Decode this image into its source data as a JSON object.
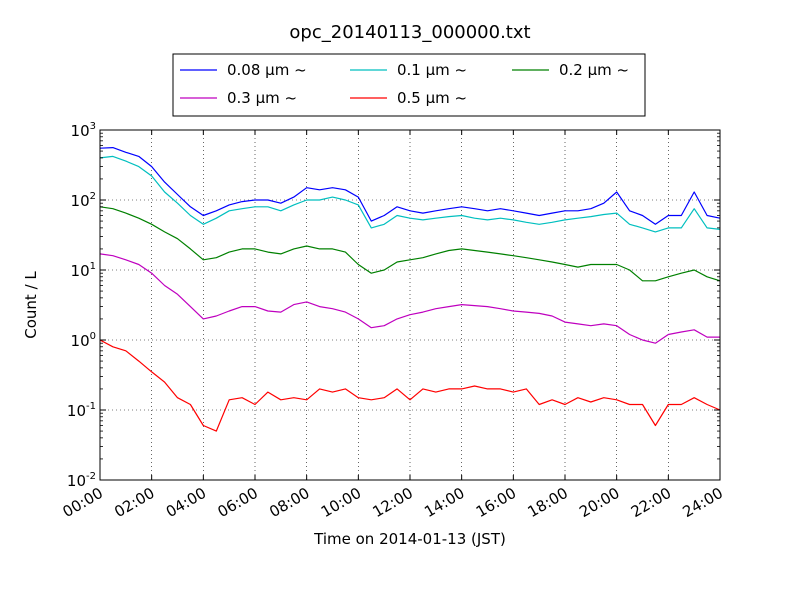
{
  "chart_data": {
    "type": "line",
    "title": "opc_20140113_000000.txt",
    "xlabel": "Time on 2014-01-13 (JST)",
    "ylabel": "Count / L",
    "yscale": "log",
    "xlim": [
      "00:00",
      "24:00"
    ],
    "ylim": [
      0.01,
      1000
    ],
    "x_ticks": [
      "00:00",
      "02:00",
      "04:00",
      "06:00",
      "08:00",
      "10:00",
      "12:00",
      "14:00",
      "16:00",
      "18:00",
      "20:00",
      "22:00",
      "24:00"
    ],
    "y_ticks": [
      {
        "base": "10",
        "exp": "-2",
        "value": 0.01
      },
      {
        "base": "10",
        "exp": "-1",
        "value": 0.1
      },
      {
        "base": "10",
        "exp": "0",
        "value": 1
      },
      {
        "base": "10",
        "exp": "1",
        "value": 10
      },
      {
        "base": "10",
        "exp": "2",
        "value": 100
      },
      {
        "base": "10",
        "exp": "3",
        "value": 1000
      }
    ],
    "grid": true,
    "legend": {
      "placement": "top-center",
      "columns": 3
    },
    "x": [
      "00:00",
      "00:30",
      "01:00",
      "01:30",
      "02:00",
      "02:30",
      "03:00",
      "03:30",
      "04:00",
      "04:30",
      "05:00",
      "05:30",
      "06:00",
      "06:30",
      "07:00",
      "07:30",
      "08:00",
      "08:30",
      "09:00",
      "09:30",
      "10:00",
      "10:30",
      "11:00",
      "11:30",
      "12:00",
      "12:30",
      "13:00",
      "13:30",
      "14:00",
      "14:30",
      "15:00",
      "15:30",
      "16:00",
      "16:30",
      "17:00",
      "17:30",
      "18:00",
      "18:30",
      "19:00",
      "19:30",
      "20:00",
      "20:30",
      "21:00",
      "21:30",
      "22:00",
      "22:30",
      "23:00",
      "23:30",
      "24:00"
    ],
    "series": [
      {
        "name": "0.08 µm ~",
        "color": "#0000ff",
        "values": [
          550,
          560,
          480,
          420,
          300,
          180,
          120,
          80,
          60,
          70,
          85,
          95,
          100,
          100,
          90,
          110,
          150,
          140,
          150,
          140,
          110,
          50,
          60,
          80,
          70,
          65,
          70,
          75,
          80,
          75,
          70,
          75,
          70,
          65,
          60,
          65,
          70,
          70,
          75,
          90,
          130,
          70,
          60,
          45,
          60,
          60,
          130,
          60,
          55
        ]
      },
      {
        "name": "0.1 µm ~",
        "color": "#00bfbf",
        "values": [
          400,
          420,
          360,
          300,
          220,
          130,
          90,
          60,
          45,
          55,
          70,
          75,
          80,
          80,
          70,
          85,
          100,
          100,
          110,
          100,
          85,
          40,
          45,
          60,
          55,
          52,
          55,
          58,
          60,
          55,
          52,
          55,
          52,
          48,
          45,
          48,
          52,
          55,
          58,
          62,
          65,
          45,
          40,
          35,
          40,
          40,
          75,
          40,
          38
        ]
      },
      {
        "name": "0.2 µm ~",
        "color": "#008000",
        "values": [
          80,
          75,
          65,
          55,
          45,
          35,
          28,
          20,
          14,
          15,
          18,
          20,
          20,
          18,
          17,
          20,
          22,
          20,
          20,
          18,
          12,
          9,
          10,
          13,
          14,
          15,
          17,
          19,
          20,
          19,
          18,
          17,
          16,
          15,
          14,
          13,
          12,
          11,
          12,
          12,
          12,
          10,
          7,
          7,
          8,
          9,
          10,
          8,
          7
        ]
      },
      {
        "name": "0.3 µm ~",
        "color": "#bf00bf",
        "values": [
          17,
          16,
          14,
          12,
          9,
          6,
          4.5,
          3,
          2,
          2.2,
          2.6,
          3,
          3,
          2.6,
          2.5,
          3.2,
          3.5,
          3,
          2.8,
          2.5,
          2,
          1.5,
          1.6,
          2,
          2.3,
          2.5,
          2.8,
          3,
          3.2,
          3.1,
          3,
          2.8,
          2.6,
          2.5,
          2.4,
          2.2,
          1.8,
          1.7,
          1.6,
          1.7,
          1.6,
          1.2,
          1.0,
          0.9,
          1.2,
          1.3,
          1.4,
          1.1,
          1.1
        ]
      },
      {
        "name": "0.5 µm ~",
        "color": "#ff0000",
        "values": [
          1.0,
          0.8,
          0.7,
          0.5,
          0.35,
          0.25,
          0.15,
          0.12,
          0.06,
          0.05,
          0.14,
          0.15,
          0.12,
          0.18,
          0.14,
          0.15,
          0.14,
          0.2,
          0.18,
          0.2,
          0.15,
          0.14,
          0.15,
          0.2,
          0.14,
          0.2,
          0.18,
          0.2,
          0.2,
          0.22,
          0.2,
          0.2,
          0.18,
          0.2,
          0.12,
          0.14,
          0.12,
          0.15,
          0.13,
          0.15,
          0.14,
          0.12,
          0.12,
          0.06,
          0.12,
          0.12,
          0.15,
          0.12,
          0.1
        ]
      }
    ]
  }
}
